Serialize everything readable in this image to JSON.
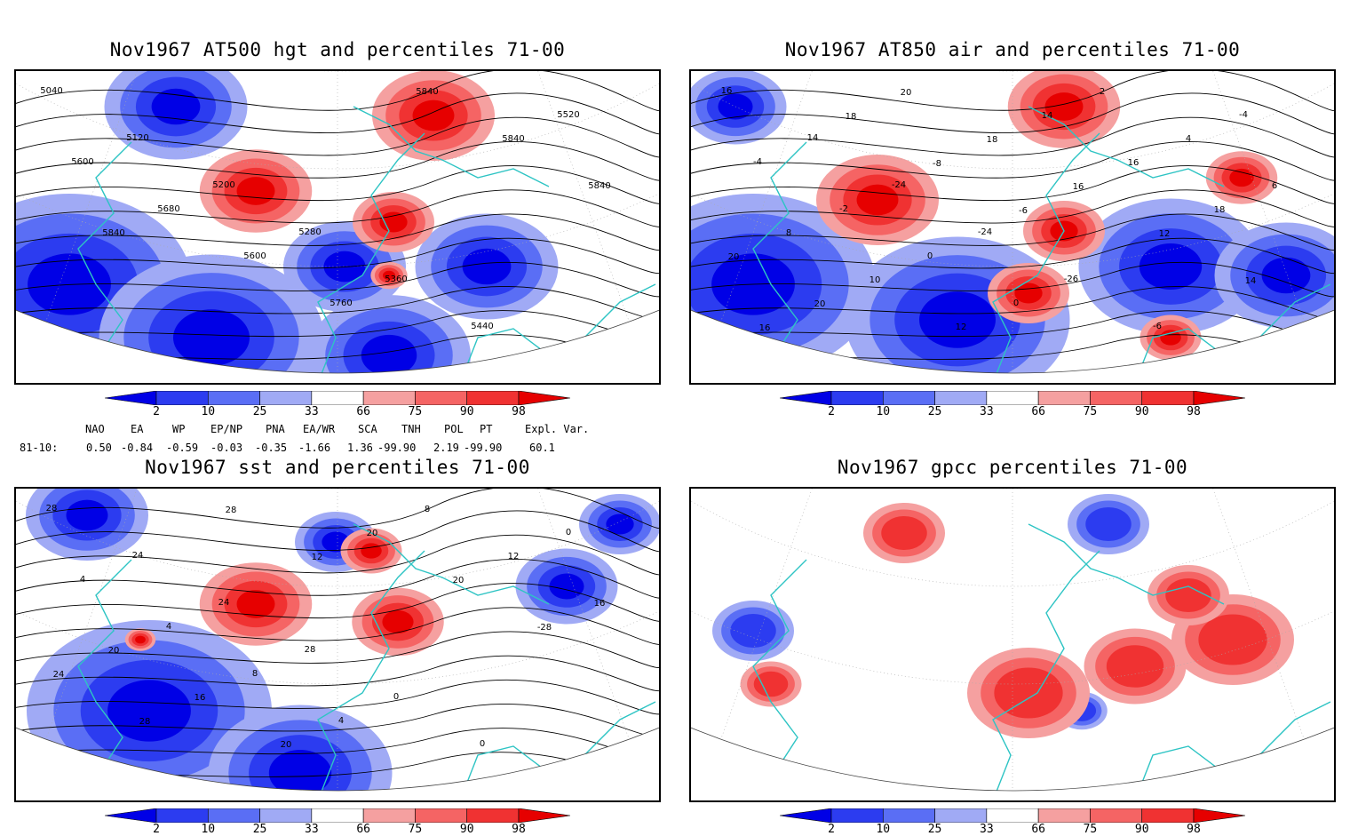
{
  "panels": [
    {
      "id": "hgt500",
      "title": "Nov1967 AT500 hgt and percentiles 71-00",
      "contour_labels": [
        "5040",
        "5120",
        "5200",
        "5280",
        "5360",
        "5440",
        "5520",
        "5600",
        "5680",
        "5600",
        "5760",
        "5840",
        "5840",
        "5840",
        "5840"
      ]
    },
    {
      "id": "air850",
      "title": "Nov1967 AT850 air and percentiles 71-00",
      "contour_labels": [
        "16",
        "14",
        "-24",
        "-24",
        "-26",
        "-6",
        "-4",
        "-4",
        "-2",
        "0",
        "0",
        "2",
        "4",
        "6",
        "8",
        "10",
        "12",
        "14",
        "16",
        "18",
        "20",
        "20",
        "20",
        "18",
        "16",
        "12",
        "14",
        "16",
        "18",
        "-8",
        "-6"
      ]
    },
    {
      "id": "sst",
      "title": "Nov1967 sst and percentiles 71-00",
      "contour_labels": [
        "28",
        "24",
        "24",
        "28",
        "0",
        "0",
        "0",
        "4",
        "4",
        "8",
        "4",
        "8",
        "12",
        "16",
        "20",
        "16",
        "20",
        "20",
        "20",
        "-28",
        "24",
        "28",
        "28",
        "12"
      ]
    },
    {
      "id": "gpcc",
      "title": "Nov1967 gpcc percentiles 71-00",
      "contour_labels": []
    }
  ],
  "colorbar": {
    "ticks": [
      "2",
      "10",
      "25",
      "33",
      "66",
      "75",
      "90",
      "98"
    ],
    "colors": [
      "#0000e6",
      "#2c3cf0",
      "#5a6ef5",
      "#a0aaf5",
      "#ffffff",
      "#f5a0a0",
      "#f56464",
      "#f03232",
      "#e60000"
    ]
  },
  "indices": {
    "headers": [
      "NAO",
      "EA",
      "WP",
      "EP/NP",
      "PNA",
      "EA/WR",
      "SCA",
      "TNH",
      "POL",
      "PT",
      "Expl. Var."
    ],
    "row_label": "81-10:",
    "values": [
      "0.50",
      "-0.84",
      "-0.59",
      "-0.03",
      "-0.35",
      "-1.66",
      "1.36",
      "-99.90",
      "2.19",
      "-99.90",
      "60.1"
    ]
  },
  "map_colors": {
    "land_outline": "#2ec4c4",
    "contour": "#000000",
    "graticule": "#aaaaaa"
  }
}
